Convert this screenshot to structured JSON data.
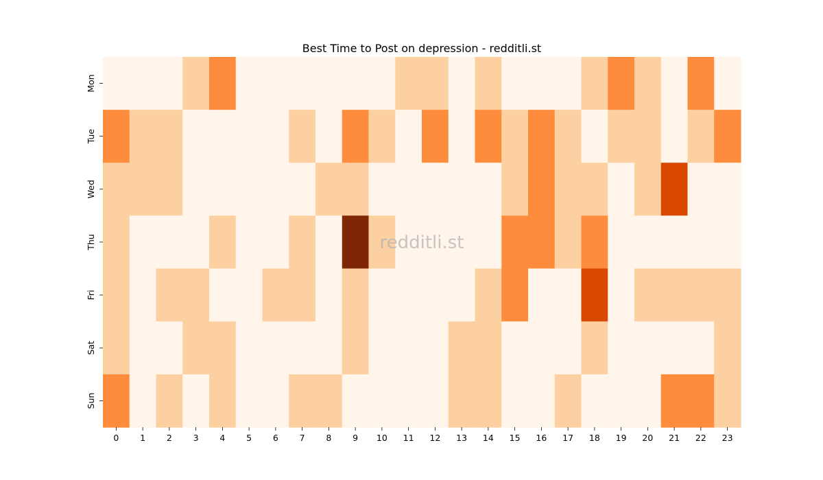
{
  "chart_data": {
    "type": "heatmap",
    "title": "Best Time to Post on depression - redditli.st",
    "watermark": "redditli.st",
    "x_categories": [
      "0",
      "1",
      "2",
      "3",
      "4",
      "5",
      "6",
      "7",
      "8",
      "9",
      "10",
      "11",
      "12",
      "13",
      "14",
      "15",
      "16",
      "17",
      "18",
      "19",
      "20",
      "21",
      "22",
      "23"
    ],
    "y_categories": [
      "Mon",
      "Tue",
      "Wed",
      "Thu",
      "Fri",
      "Sat",
      "Sun"
    ],
    "values": [
      [
        0,
        0,
        0,
        1,
        2,
        0,
        0,
        0,
        0,
        0,
        0,
        1,
        1,
        0,
        1,
        0,
        0,
        0,
        1,
        2,
        1,
        0,
        2,
        0
      ],
      [
        2,
        1,
        1,
        0,
        0,
        0,
        0,
        1,
        0,
        2,
        1,
        0,
        2,
        0,
        2,
        1,
        2,
        1,
        0,
        1,
        1,
        0,
        1,
        2
      ],
      [
        1,
        1,
        1,
        0,
        0,
        0,
        0,
        0,
        1,
        1,
        0,
        0,
        0,
        0,
        0,
        1,
        2,
        1,
        1,
        0,
        1,
        3,
        0,
        0
      ],
      [
        1,
        0,
        0,
        0,
        1,
        0,
        0,
        1,
        0,
        4,
        1,
        0,
        0,
        0,
        0,
        2,
        2,
        1,
        2,
        0,
        0,
        0,
        0,
        0
      ],
      [
        1,
        0,
        1,
        1,
        0,
        0,
        1,
        1,
        0,
        1,
        0,
        0,
        0,
        0,
        1,
        2,
        0,
        0,
        3,
        0,
        1,
        1,
        1,
        1
      ],
      [
        1,
        0,
        0,
        1,
        1,
        0,
        0,
        0,
        0,
        1,
        0,
        0,
        0,
        1,
        1,
        0,
        0,
        0,
        1,
        0,
        0,
        0,
        0,
        1
      ],
      [
        2,
        0,
        1,
        0,
        1,
        0,
        0,
        1,
        1,
        0,
        0,
        0,
        0,
        1,
        1,
        0,
        0,
        1,
        0,
        0,
        0,
        2,
        2,
        1
      ]
    ],
    "value_range": [
      0,
      4
    ],
    "colormap": "Oranges",
    "level_colors": [
      "#fff5eb",
      "#fdd0a2",
      "#fd8d3c",
      "#d94801",
      "#7f2704"
    ],
    "grid": false,
    "colorbar": false
  }
}
